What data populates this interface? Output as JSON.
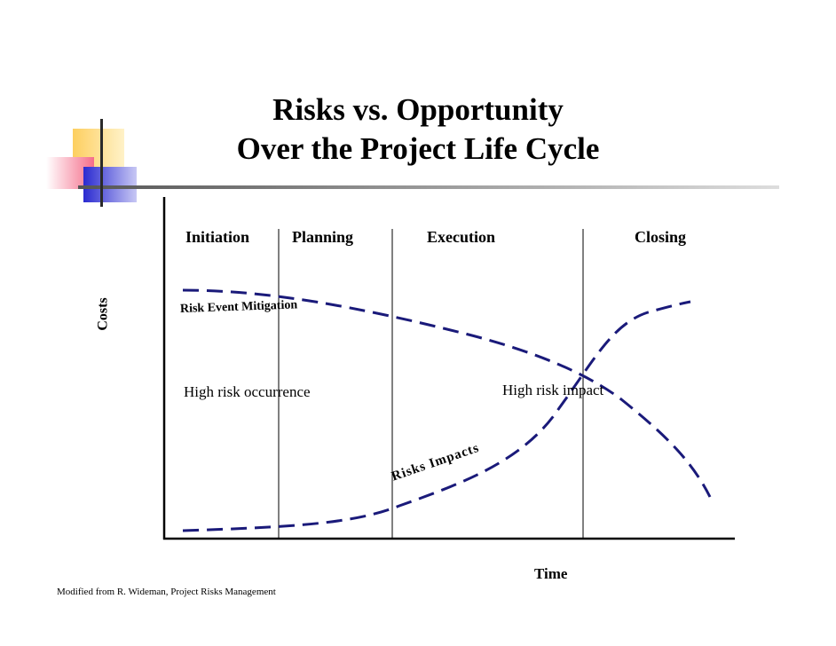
{
  "title": {
    "line1": "Risks vs. Opportunity",
    "line2": "Over the Project Life Cycle"
  },
  "phases": [
    "Initiation",
    "Planning",
    "Execution",
    "Closing"
  ],
  "axes": {
    "y_label": "Costs",
    "x_label": "Time"
  },
  "curves": {
    "mitigation": {
      "label": "Risk Event Mitigation",
      "trend": "decreasing",
      "style": "dashed"
    },
    "impacts": {
      "label": "Risks Impacts",
      "trend": "increasing",
      "style": "dashed"
    }
  },
  "annotations": {
    "left": "High risk occurrence",
    "right": "High risk impact"
  },
  "credit": "Modified from R. Wideman, Project Risks Management",
  "colors": {
    "curve": "#1a1a7a",
    "title_bar": "#9a9a9a",
    "deco_yellow": "#fdd36b",
    "deco_pink": "#f56d8a",
    "deco_blue": "#3a3ad8",
    "axis": "#000000"
  }
}
